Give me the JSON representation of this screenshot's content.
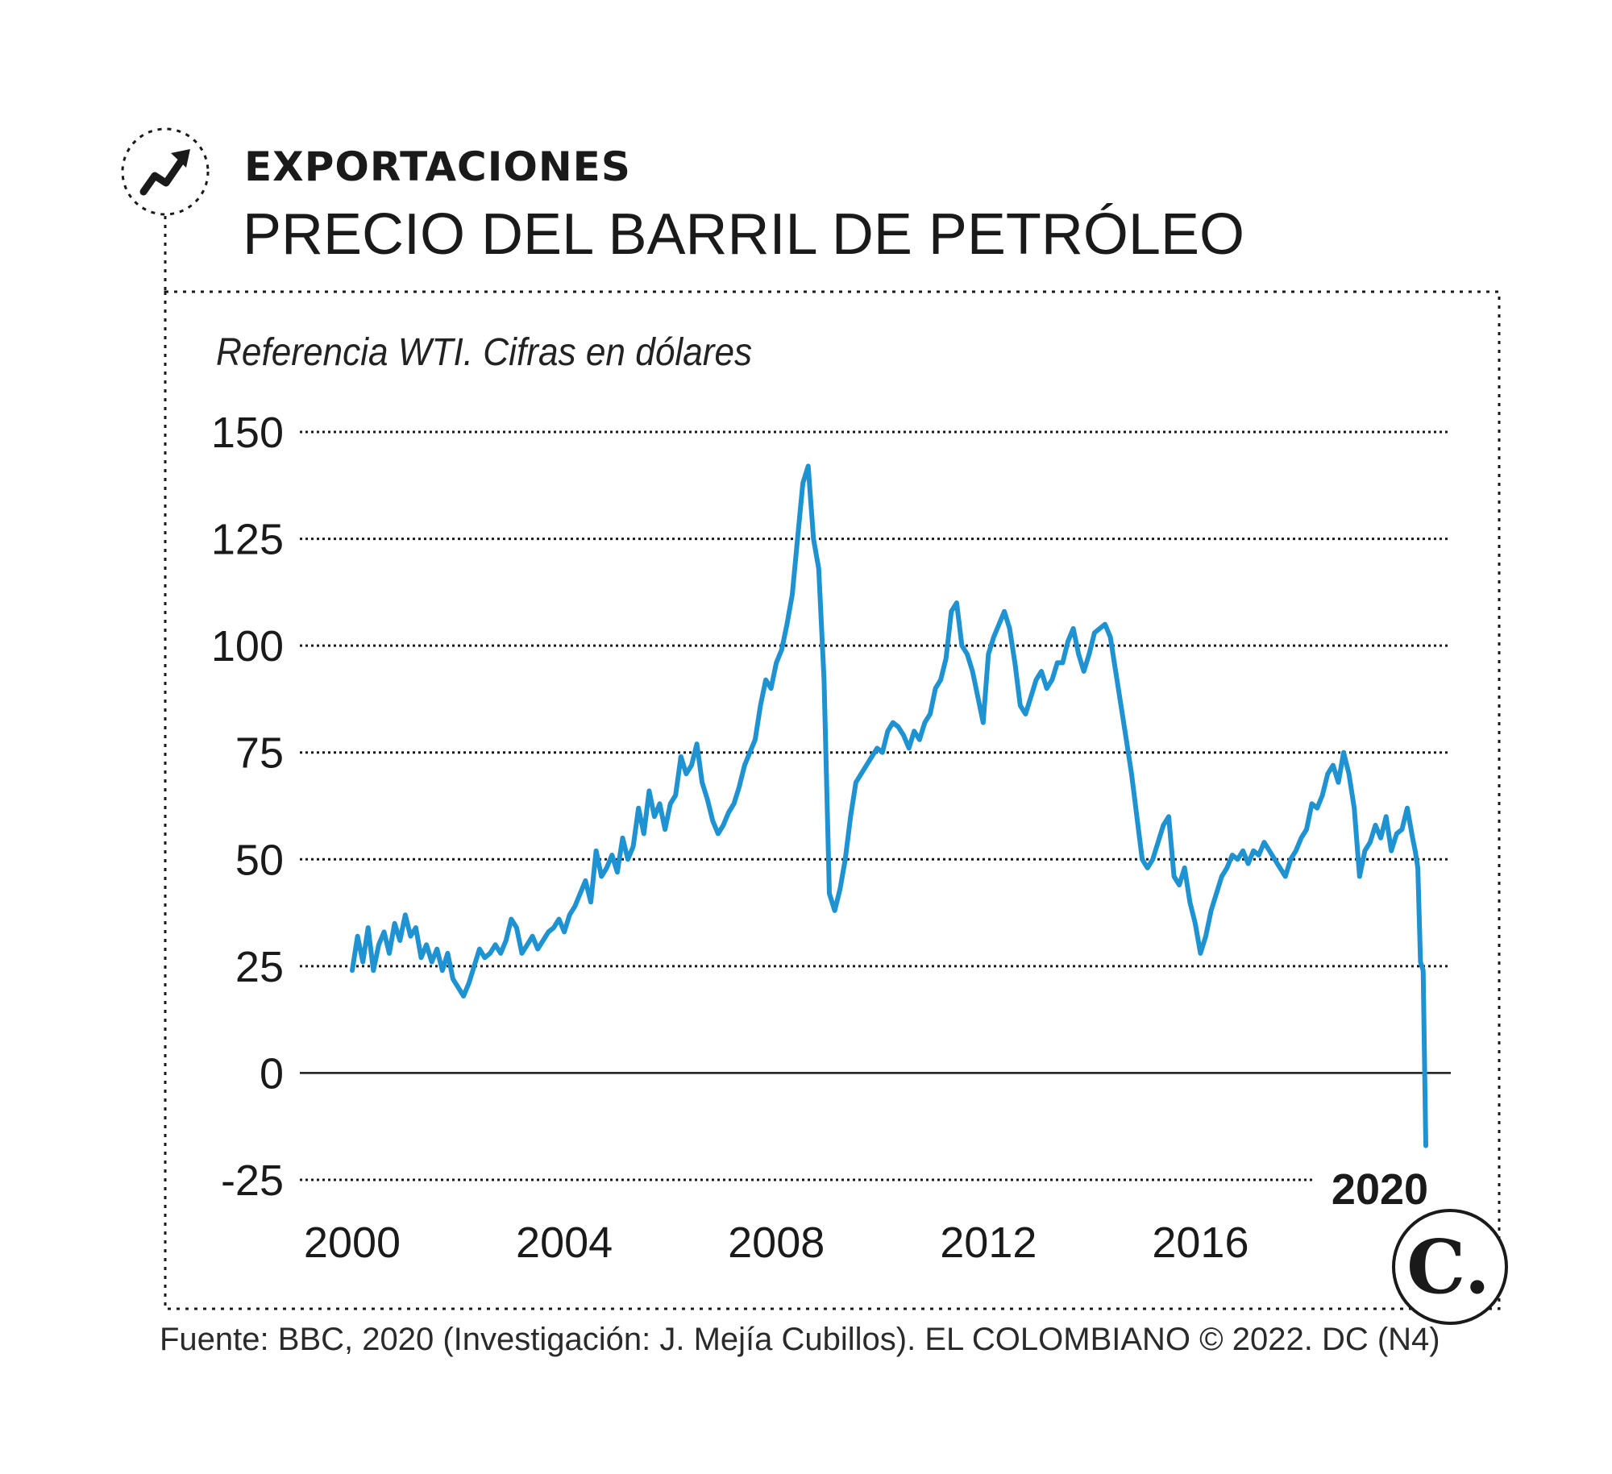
{
  "header": {
    "kicker": "EXPORTACIONES",
    "title": "PRECIO DEL BARRIL DE PETRÓLEO",
    "subtitle": "Referencia WTI. Cifras en dólares",
    "trend_icon": "trend-up-arrow-icon"
  },
  "footer": {
    "source": "Fuente: BBC, 2020 (Investigación: J. Mejía Cubillos). EL COLOMBIANO © 2022. DC (N4)",
    "logo_text": "C."
  },
  "colors": {
    "line": "#1f93d2",
    "text": "#1a1a1a",
    "grid": "#1a1a1a"
  },
  "chart_data": {
    "type": "line",
    "title": "PRECIO DEL BARRIL DE PETRÓLEO",
    "subtitle": "Referencia WTI. Cifras en dólares",
    "xlabel": "",
    "ylabel": "",
    "xlim": [
      2000,
      2020.25
    ],
    "ylim": [
      -25,
      150
    ],
    "y_ticks": [
      150,
      125,
      100,
      75,
      50,
      25,
      0,
      -25
    ],
    "x_tick_labels": [
      "2000",
      "2004",
      "2008",
      "2012",
      "2016"
    ],
    "end_label": "2020",
    "grid": "dotted horizontal",
    "series": [
      {
        "x": [
          2000.0,
          2000.1,
          2000.2,
          2000.3,
          2000.4,
          2000.5,
          2000.6,
          2000.7,
          2000.8,
          2000.9,
          2001.0,
          2001.1,
          2001.2,
          2001.3,
          2001.4,
          2001.5,
          2001.6,
          2001.7,
          2001.8,
          2001.9,
          2002.0,
          2002.1,
          2002.2,
          2002.3,
          2002.4,
          2002.5,
          2002.6,
          2002.7,
          2002.8,
          2002.9,
          2003.0,
          2003.1,
          2003.2,
          2003.3,
          2003.4,
          2003.5,
          2003.6,
          2003.7,
          2003.8,
          2003.9,
          2004.0,
          2004.1,
          2004.2,
          2004.3,
          2004.4,
          2004.5,
          2004.6,
          2004.7,
          2004.8,
          2004.9,
          2005.0,
          2005.1,
          2005.2,
          2005.3,
          2005.4,
          2005.5,
          2005.6,
          2005.7,
          2005.8,
          2005.9,
          2006.0,
          2006.1,
          2006.2,
          2006.3,
          2006.4,
          2006.5,
          2006.6,
          2006.7,
          2006.8,
          2006.9,
          2007.0,
          2007.1,
          2007.2,
          2007.3,
          2007.4,
          2007.5,
          2007.6,
          2007.7,
          2007.8,
          2007.9,
          2008.0,
          2008.1,
          2008.2,
          2008.3,
          2008.4,
          2008.5,
          2008.6,
          2008.7,
          2008.8,
          2008.9,
          2009.0,
          2009.1,
          2009.2,
          2009.3,
          2009.4,
          2009.5,
          2009.6,
          2009.7,
          2009.8,
          2009.9,
          2010.0,
          2010.1,
          2010.2,
          2010.3,
          2010.4,
          2010.5,
          2010.6,
          2010.7,
          2010.8,
          2010.9,
          2011.0,
          2011.1,
          2011.2,
          2011.3,
          2011.4,
          2011.5,
          2011.6,
          2011.7,
          2011.8,
          2011.9,
          2012.0,
          2012.1,
          2012.2,
          2012.3,
          2012.4,
          2012.5,
          2012.6,
          2012.7,
          2012.8,
          2012.9,
          2013.0,
          2013.1,
          2013.2,
          2013.3,
          2013.4,
          2013.5,
          2013.6,
          2013.7,
          2013.8,
          2013.9,
          2014.0,
          2014.1,
          2014.2,
          2014.3,
          2014.4,
          2014.5,
          2014.6,
          2014.7,
          2014.8,
          2014.9,
          2015.0,
          2015.1,
          2015.2,
          2015.3,
          2015.4,
          2015.5,
          2015.6,
          2015.7,
          2015.8,
          2015.9,
          2016.0,
          2016.1,
          2016.2,
          2016.3,
          2016.4,
          2016.5,
          2016.6,
          2016.7,
          2016.8,
          2016.9,
          2017.0,
          2017.1,
          2017.2,
          2017.3,
          2017.4,
          2017.5,
          2017.6,
          2017.7,
          2017.8,
          2017.9,
          2018.0,
          2018.1,
          2018.2,
          2018.3,
          2018.4,
          2018.5,
          2018.6,
          2018.7,
          2018.8,
          2018.9,
          2019.0,
          2019.1,
          2019.2,
          2019.3,
          2019.4,
          2019.5,
          2019.6,
          2019.7,
          2019.8,
          2019.9,
          2020.0,
          2020.05,
          2020.1,
          2020.15,
          2020.2,
          2020.25
        ],
        "values": [
          24,
          32,
          26,
          34,
          24,
          30,
          33,
          28,
          35,
          31,
          37,
          32,
          34,
          27,
          30,
          26,
          29,
          24,
          28,
          22,
          20,
          18,
          21,
          25,
          29,
          27,
          28,
          30,
          28,
          31,
          36,
          34,
          28,
          30,
          32,
          29,
          31,
          33,
          34,
          36,
          33,
          37,
          39,
          42,
          45,
          40,
          52,
          46,
          48,
          51,
          47,
          55,
          50,
          53,
          62,
          56,
          66,
          60,
          63,
          57,
          63,
          65,
          74,
          70,
          72,
          77,
          68,
          64,
          59,
          56,
          58,
          61,
          63,
          67,
          72,
          75,
          78,
          86,
          92,
          90,
          96,
          99,
          105,
          112,
          125,
          138,
          142,
          125,
          118,
          92,
          42,
          38,
          43,
          50,
          60,
          68,
          70,
          72,
          74,
          76,
          75,
          80,
          82,
          81,
          79,
          76,
          80,
          78,
          82,
          84,
          90,
          92,
          97,
          108,
          110,
          100,
          98,
          94,
          88,
          82,
          98,
          102,
          105,
          108,
          104,
          96,
          86,
          84,
          88,
          92,
          94,
          90,
          92,
          96,
          96,
          101,
          104,
          98,
          94,
          98,
          103,
          104,
          105,
          102,
          94,
          86,
          78,
          70,
          60,
          50,
          48,
          50,
          54,
          58,
          60,
          46,
          44,
          48,
          40,
          35,
          28,
          32,
          38,
          42,
          46,
          48,
          51,
          50,
          52,
          49,
          52,
          51,
          54,
          52,
          50,
          48,
          46,
          50,
          52,
          55,
          57,
          63,
          62,
          65,
          70,
          72,
          68,
          75,
          70,
          62,
          46,
          52,
          54,
          58,
          55,
          60,
          52,
          56,
          57,
          62,
          55,
          52,
          48,
          26,
          24,
          -17
        ]
      }
    ]
  }
}
